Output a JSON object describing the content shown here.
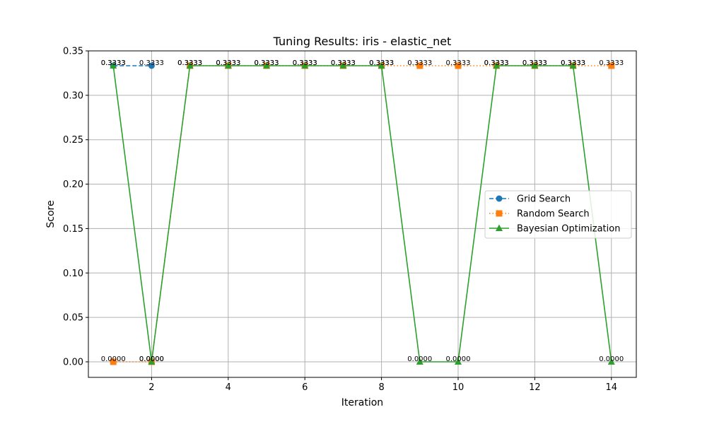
{
  "chart_data": {
    "type": "line",
    "title": "Tuning Results: iris - elastic_net",
    "xlabel": "Iteration",
    "ylabel": "Score",
    "xlim": [
      0.35,
      14.65
    ],
    "ylim": [
      -0.0175,
      0.35
    ],
    "x_ticks": [
      2,
      4,
      6,
      8,
      10,
      12,
      14
    ],
    "y_ticks": [
      0.0,
      0.05,
      0.1,
      0.15,
      0.2,
      0.25,
      0.3,
      0.35
    ],
    "x_tick_labels": [
      "2",
      "4",
      "6",
      "8",
      "10",
      "12",
      "14"
    ],
    "y_tick_labels": [
      "0.00",
      "0.05",
      "0.10",
      "0.15",
      "0.20",
      "0.25",
      "0.30",
      "0.35"
    ],
    "grid": true,
    "legend_position": "center-right",
    "series": [
      {
        "name": "Grid Search",
        "color": "#1f77b4",
        "marker": "circle",
        "linestyle": "dashed",
        "x": [
          1,
          2
        ],
        "y": [
          0.3333,
          0.3333
        ],
        "labels": [
          "0.3333",
          "0.3333"
        ]
      },
      {
        "name": "Random Search",
        "color": "#ff7f0e",
        "marker": "square",
        "linestyle": "dotted",
        "x": [
          1,
          2,
          3,
          4,
          5,
          6,
          7,
          8,
          9,
          10,
          11,
          12,
          13,
          14
        ],
        "y": [
          0.0,
          0.0,
          0.3333,
          0.3333,
          0.3333,
          0.3333,
          0.3333,
          0.3333,
          0.3333,
          0.3333,
          0.3333,
          0.3333,
          0.3333,
          0.3333
        ],
        "labels": [
          "0.0000",
          "0.0000",
          "0.3333",
          "0.3333",
          "0.3333",
          "0.3333",
          "0.3333",
          "0.3333",
          "0.3333",
          "0.3333",
          "0.3333",
          "0.3333",
          "0.3333",
          "0.3333"
        ]
      },
      {
        "name": "Bayesian Optimization",
        "color": "#2ca02c",
        "marker": "triangle",
        "linestyle": "solid",
        "x": [
          1,
          2,
          3,
          4,
          5,
          6,
          7,
          8,
          9,
          10,
          11,
          12,
          13,
          14
        ],
        "y": [
          0.3333,
          0.0,
          0.3333,
          0.3333,
          0.3333,
          0.3333,
          0.3333,
          0.3333,
          0.0,
          0.0,
          0.3333,
          0.3333,
          0.3333,
          0.0
        ],
        "labels": [
          "0.3333",
          "0.0000",
          "0.3333",
          "0.3333",
          "0.3333",
          "0.3333",
          "0.3333",
          "0.3333",
          "0.0000",
          "0.0000",
          "0.3333",
          "0.3333",
          "0.3333",
          "0.0000"
        ]
      }
    ]
  }
}
